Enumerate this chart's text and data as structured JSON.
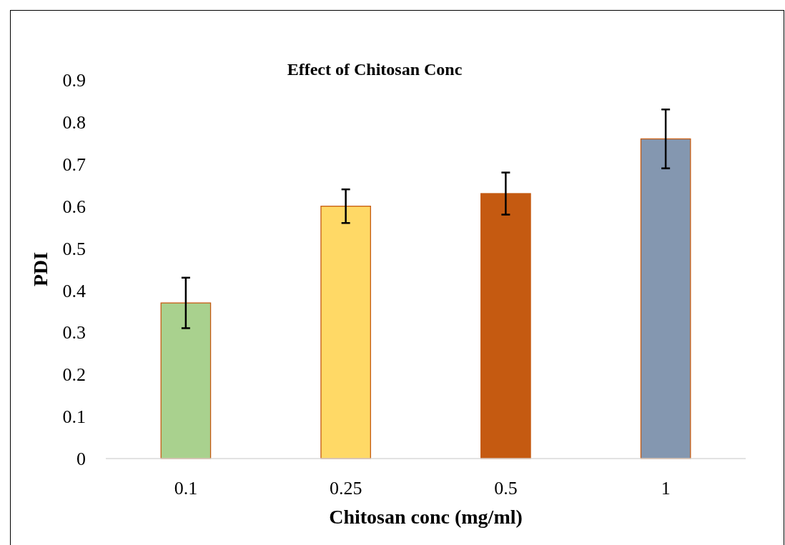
{
  "chart_data": {
    "type": "bar",
    "title": "Effect of Chitosan Conc",
    "xlabel": "Chitosan conc (mg/ml)",
    "ylabel": "PDI",
    "categories": [
      "0.1",
      "0.25",
      "0.5",
      "1"
    ],
    "values": [
      0.37,
      0.6,
      0.63,
      0.76
    ],
    "errors": [
      0.06,
      0.04,
      0.05,
      0.07
    ],
    "colors": [
      "#a9d18e",
      "#ffd966",
      "#c55a11",
      "#8497b0"
    ],
    "ylim": [
      0,
      0.9
    ],
    "yticks": [
      0,
      0.1,
      0.2,
      0.3,
      0.4,
      0.5,
      0.6,
      0.7,
      0.8,
      0.9
    ],
    "grid": false
  }
}
